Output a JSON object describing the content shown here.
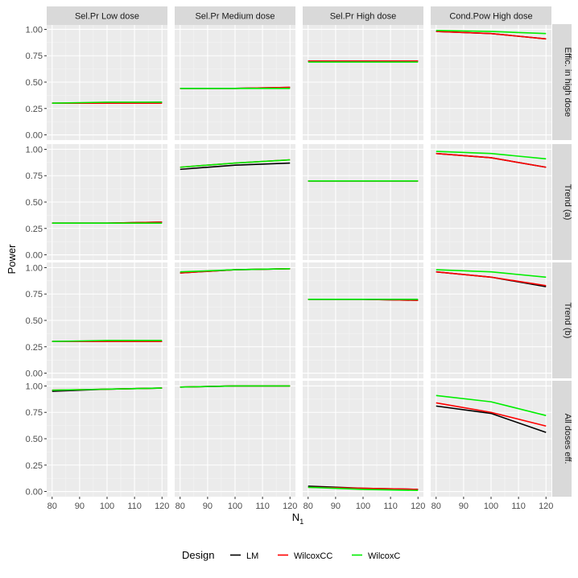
{
  "chart_data": {
    "type": "line",
    "facet_columns": [
      "Sel.Pr Low dose",
      "Sel.Pr Medium dose",
      "Sel.Pr High dose",
      "Cond.Pow High dose"
    ],
    "facet_rows": [
      "Effic. in high dose",
      "Trend (a)",
      "Trend (b)",
      "All doses eff."
    ],
    "x": [
      80,
      100,
      120
    ],
    "x_ticks": [
      80,
      90,
      100,
      110,
      120
    ],
    "xlim": [
      80,
      120
    ],
    "ylim": [
      0,
      1
    ],
    "y_ticks": [
      0,
      0.25,
      0.5,
      0.75,
      1
    ],
    "y_tick_labels": [
      "0.00",
      "0.25",
      "0.50",
      "0.75",
      "1.00"
    ],
    "xlabel": "N",
    "xlabel_subscript": "1",
    "ylabel": "Power",
    "legend": {
      "title": "Design",
      "position": "bottom",
      "entries": [
        {
          "name": "LM",
          "color": "#000000"
        },
        {
          "name": "WilcoxCC",
          "color": "#ff0000"
        },
        {
          "name": "WilcoxC",
          "color": "#00ee00"
        }
      ]
    },
    "panels": [
      [
        {
          "LM": [
            0.3,
            0.3,
            0.31
          ],
          "WilcoxCC": [
            0.3,
            0.3,
            0.3
          ],
          "WilcoxC": [
            0.3,
            0.31,
            0.31
          ]
        },
        {
          "LM": [
            0.44,
            0.44,
            0.45
          ],
          "WilcoxCC": [
            0.44,
            0.44,
            0.45
          ],
          "WilcoxC": [
            0.44,
            0.44,
            0.44
          ]
        },
        {
          "LM": [
            0.7,
            0.7,
            0.7
          ],
          "WilcoxCC": [
            0.7,
            0.7,
            0.7
          ],
          "WilcoxC": [
            0.69,
            0.69,
            0.69
          ]
        },
        {
          "LM": [
            0.98,
            0.96,
            0.91
          ],
          "WilcoxCC": [
            0.98,
            0.96,
            0.91
          ],
          "WilcoxC": [
            0.99,
            0.98,
            0.96
          ]
        }
      ],
      [
        {
          "LM": [
            0.3,
            0.3,
            0.31
          ],
          "WilcoxCC": [
            0.3,
            0.3,
            0.31
          ],
          "WilcoxC": [
            0.3,
            0.3,
            0.3
          ]
        },
        {
          "LM": [
            0.81,
            0.85,
            0.87
          ],
          "WilcoxCC": [
            0.83,
            0.87,
            0.9
          ],
          "WilcoxC": [
            0.83,
            0.87,
            0.9
          ]
        },
        {
          "LM": [
            0.7,
            0.7,
            0.7
          ],
          "WilcoxCC": [
            0.7,
            0.7,
            0.7
          ],
          "WilcoxC": [
            0.7,
            0.7,
            0.7
          ]
        },
        {
          "LM": [
            0.96,
            0.92,
            0.83
          ],
          "WilcoxCC": [
            0.96,
            0.92,
            0.83
          ],
          "WilcoxC": [
            0.98,
            0.96,
            0.91
          ]
        }
      ],
      [
        {
          "LM": [
            0.3,
            0.3,
            0.3
          ],
          "WilcoxCC": [
            0.3,
            0.3,
            0.3
          ],
          "WilcoxC": [
            0.3,
            0.31,
            0.31
          ]
        },
        {
          "LM": [
            0.95,
            0.98,
            0.99
          ],
          "WilcoxCC": [
            0.95,
            0.98,
            0.99
          ],
          "WilcoxC": [
            0.96,
            0.98,
            0.99
          ]
        },
        {
          "LM": [
            0.7,
            0.7,
            0.69
          ],
          "WilcoxCC": [
            0.7,
            0.7,
            0.69
          ],
          "WilcoxC": [
            0.7,
            0.7,
            0.7
          ]
        },
        {
          "LM": [
            0.96,
            0.91,
            0.82
          ],
          "WilcoxCC": [
            0.96,
            0.91,
            0.83
          ],
          "WilcoxC": [
            0.98,
            0.96,
            0.91
          ]
        }
      ],
      [
        {
          "LM": [
            0.95,
            0.97,
            0.98
          ],
          "WilcoxCC": [
            0.96,
            0.97,
            0.98
          ],
          "WilcoxC": [
            0.96,
            0.97,
            0.98
          ]
        },
        {
          "LM": [
            0.99,
            1.0,
            1.0
          ],
          "WilcoxCC": [
            0.99,
            1.0,
            1.0
          ],
          "WilcoxC": [
            0.99,
            1.0,
            1.0
          ]
        },
        {
          "LM": [
            0.05,
            0.03,
            0.02
          ],
          "WilcoxCC": [
            0.04,
            0.03,
            0.02
          ],
          "WilcoxC": [
            0.04,
            0.02,
            0.01
          ]
        },
        {
          "LM": [
            0.81,
            0.74,
            0.56
          ],
          "WilcoxCC": [
            0.84,
            0.75,
            0.62
          ],
          "WilcoxC": [
            0.91,
            0.85,
            0.72
          ]
        }
      ]
    ]
  }
}
